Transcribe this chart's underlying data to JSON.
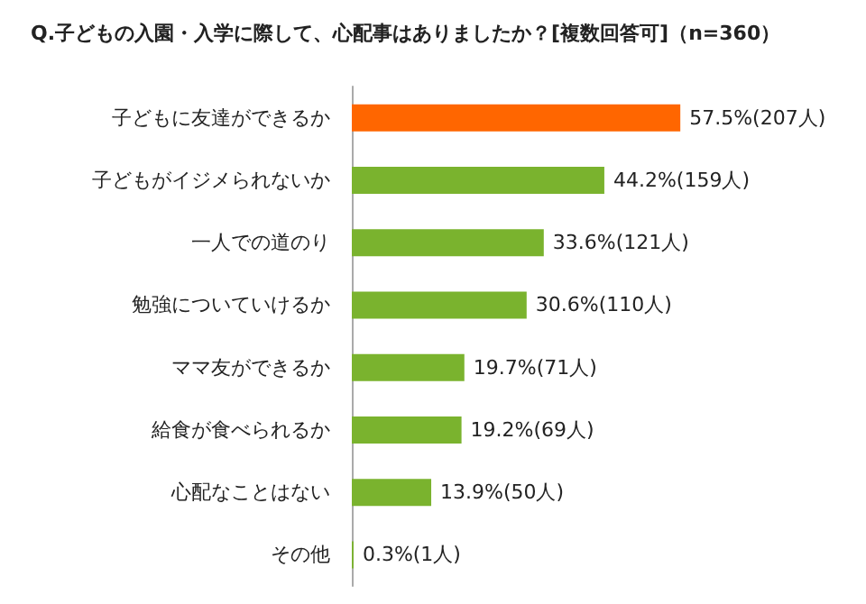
{
  "chart_data": {
    "type": "bar",
    "orientation": "horizontal",
    "title": "Q.子どもの入園・入学に際して、心配事はありましたか？[複数回答可]（n=360）",
    "categories": [
      "子どもに友達ができるか",
      "子どもがイジメられないか",
      "一人での道のり",
      "勉強についていけるか",
      "ママ友ができるか",
      "給食が食べられるか",
      "心配なことはない",
      "その他"
    ],
    "values": [
      57.5,
      44.2,
      33.6,
      30.6,
      19.7,
      19.2,
      13.9,
      0.3
    ],
    "colors": [
      "#ff6600",
      "#7ab32e",
      "#7ab32e",
      "#7ab32e",
      "#7ab32e",
      "#7ab32e",
      "#7ab32e",
      "#7ab32e"
    ],
    "value_labels": [
      "57.5%(207人)",
      "44.2%(159人)",
      "33.6%(121人)",
      "30.6%(110人)",
      "19.7%(71人)",
      "19.2%(69人)",
      "13.9%(50人)",
      "0.3%(1人)"
    ]
  }
}
